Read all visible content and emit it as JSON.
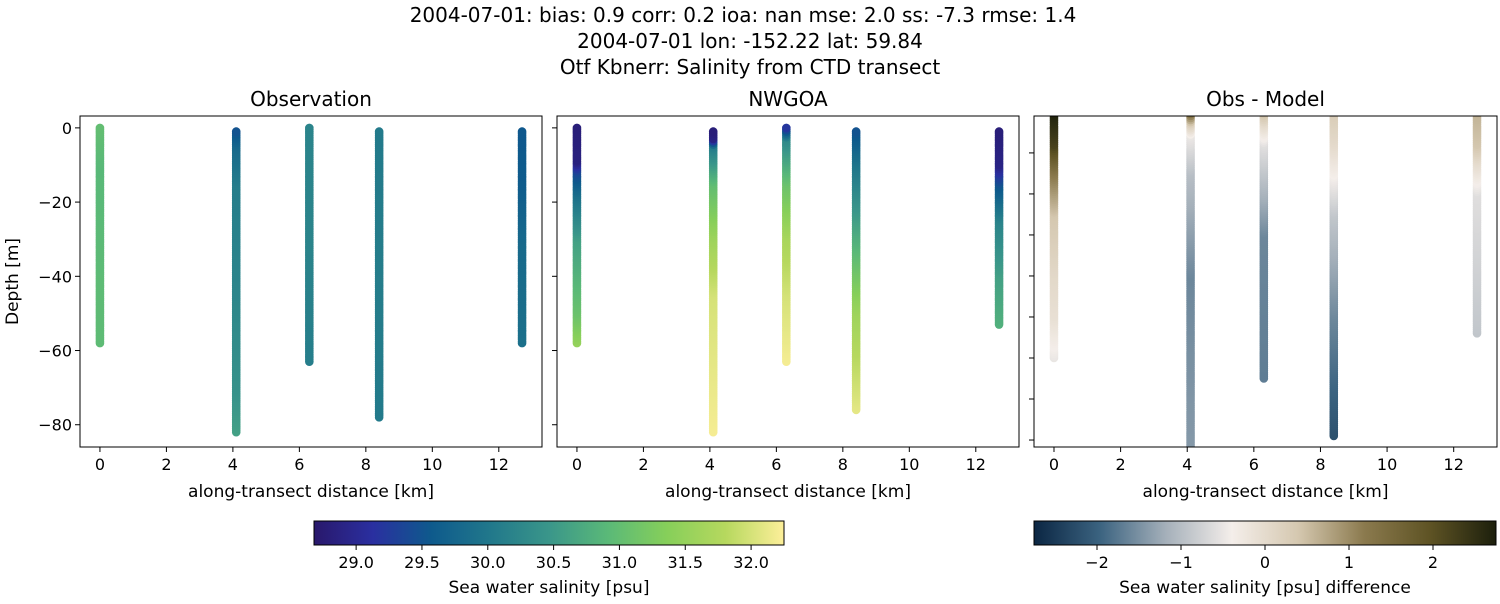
{
  "figure": {
    "suptitle_lines": [
      "2004-07-01: bias: 0.9  corr: 0.2  ioa: nan  mse: 2.0  ss: -7.3  rmse: 1.4",
      "2004-07-01 lon: -152.22 lat: 59.84",
      "Otf Kbnerr: Salinity from CTD transect"
    ]
  },
  "chart_data": [
    {
      "type": "scatter",
      "title": "Observation",
      "xlabel": "along-transect distance [km]",
      "ylabel": "Depth [m]",
      "xlim": [
        -0.6,
        13.3
      ],
      "ylim": [
        -86,
        3.2
      ],
      "xticks": [
        0,
        2,
        4,
        6,
        8,
        10,
        12
      ],
      "yticks": [
        0,
        -20,
        -40,
        -60,
        -80
      ],
      "ytick_labels_shown": true,
      "colormap": "salinity",
      "profiles": [
        {
          "x": 0.0,
          "points": [
            [
              0,
              31.0
            ],
            [
              -10,
              30.9
            ],
            [
              -40,
              30.95
            ],
            [
              -58,
              30.95
            ]
          ]
        },
        {
          "x": 4.1,
          "points": [
            [
              -1,
              29.5
            ],
            [
              -5,
              29.8
            ],
            [
              -15,
              30.1
            ],
            [
              -40,
              30.2
            ],
            [
              -70,
              30.4
            ],
            [
              -82,
              30.6
            ]
          ]
        },
        {
          "x": 6.3,
          "points": [
            [
              0,
              30.2
            ],
            [
              -30,
              30.2
            ],
            [
              -63,
              30.1
            ]
          ]
        },
        {
          "x": 8.4,
          "points": [
            [
              -1,
              30.05
            ],
            [
              -40,
              30.1
            ],
            [
              -78,
              30.05
            ]
          ]
        },
        {
          "x": 12.7,
          "points": [
            [
              -1,
              29.55
            ],
            [
              -15,
              29.6
            ],
            [
              -30,
              29.8
            ],
            [
              -58,
              29.9
            ]
          ]
        }
      ]
    },
    {
      "type": "scatter",
      "title": "NWGOA",
      "xlabel": "along-transect distance [km]",
      "xlim": [
        -0.6,
        13.3
      ],
      "ylim": [
        -86,
        3.2
      ],
      "xticks": [
        0,
        2,
        4,
        6,
        8,
        10,
        12
      ],
      "yticks": [
        0,
        -20,
        -40,
        -60,
        -80
      ],
      "ytick_labels_shown": false,
      "colormap": "salinity",
      "profiles": [
        {
          "x": 0.0,
          "points": [
            [
              0,
              28.8
            ],
            [
              -9,
              28.85
            ],
            [
              -12,
              29.4
            ],
            [
              -18,
              29.9
            ],
            [
              -30,
              30.6
            ],
            [
              -50,
              31.1
            ],
            [
              -58,
              31.5
            ]
          ]
        },
        {
          "x": 4.1,
          "points": [
            [
              -1,
              28.8
            ],
            [
              -3,
              28.9
            ],
            [
              -5,
              30.1
            ],
            [
              -15,
              31.0
            ],
            [
              -30,
              31.6
            ],
            [
              -45,
              32.0
            ],
            [
              -82,
              32.2
            ]
          ]
        },
        {
          "x": 6.3,
          "points": [
            [
              0,
              29.2
            ],
            [
              -3,
              30.3
            ],
            [
              -15,
              31.1
            ],
            [
              -30,
              31.7
            ],
            [
              -45,
              32.0
            ],
            [
              -63,
              32.2
            ]
          ]
        },
        {
          "x": 8.4,
          "points": [
            [
              -1,
              29.5
            ],
            [
              -10,
              30.0
            ],
            [
              -30,
              30.8
            ],
            [
              -50,
              31.6
            ],
            [
              -76,
              32.1
            ]
          ]
        },
        {
          "x": 12.7,
          "points": [
            [
              -1,
              28.8
            ],
            [
              -10,
              28.9
            ],
            [
              -15,
              29.5
            ],
            [
              -25,
              30.2
            ],
            [
              -40,
              30.6
            ],
            [
              -53,
              30.8
            ]
          ]
        }
      ]
    },
    {
      "type": "scatter",
      "title": "Obs - Model",
      "xlabel": "along-transect distance [km]",
      "xlim": [
        -0.6,
        13.3
      ],
      "ylim": [
        -81.7,
        -1
      ],
      "xticks": [
        0,
        2,
        4,
        6,
        8,
        10,
        12
      ],
      "yticks": [
        -10,
        -20,
        -30,
        -40,
        -50,
        -60,
        -70,
        -80
      ],
      "ytick_labels_shown": false,
      "colormap": "difference",
      "profiles": [
        {
          "x": 0.0,
          "points": [
            [
              0,
              2.7
            ],
            [
              -8,
              2.2
            ],
            [
              -15,
              1.2
            ],
            [
              -25,
              0.4
            ],
            [
              -40,
              0.05
            ],
            [
              -50,
              -0.1
            ],
            [
              -60,
              -0.5
            ]
          ]
        },
        {
          "x": 4.1,
          "points": [
            [
              0,
              1.5
            ],
            [
              -3,
              0.2
            ],
            [
              -6,
              -0.5
            ],
            [
              -15,
              -1.0
            ],
            [
              -40,
              -1.6
            ],
            [
              -70,
              -1.45
            ],
            [
              -88,
              -1.4
            ]
          ]
        },
        {
          "x": 6.3,
          "points": [
            [
              0,
              0.5
            ],
            [
              -3,
              0.0
            ],
            [
              -8,
              -0.6
            ],
            [
              -30,
              -1.6
            ],
            [
              -65,
              -1.7
            ]
          ]
        },
        {
          "x": 8.4,
          "points": [
            [
              0,
              0.3
            ],
            [
              -8,
              0.0
            ],
            [
              -25,
              -0.9
            ],
            [
              -50,
              -1.6
            ],
            [
              -79,
              -2.2
            ]
          ]
        },
        {
          "x": 12.7,
          "points": [
            [
              0,
              0.6
            ],
            [
              -8,
              0.4
            ],
            [
              -12,
              0.0
            ],
            [
              -20,
              -0.6
            ],
            [
              -54,
              -0.9
            ]
          ]
        }
      ]
    }
  ],
  "colorbars": [
    {
      "label": "Sea water salinity [psu]",
      "range": [
        28.68,
        32.25
      ],
      "ticks": [
        "29.0",
        "29.5",
        "30.0",
        "30.5",
        "31.0",
        "31.5",
        "32.0"
      ],
      "colors": [
        "#29186b",
        "#2a2fa0",
        "#0e5a8c",
        "#21788b",
        "#3a968a",
        "#5ab978",
        "#86cf5a",
        "#b6d85e",
        "#fdef9a"
      ]
    },
    {
      "label": "Sea water salinity [psu] difference",
      "range": [
        -2.75,
        2.75
      ],
      "ticks": [
        "−2",
        "−1",
        "0",
        "1",
        "2"
      ],
      "colors": [
        "#0b2643",
        "#3b6380",
        "#a5b0ba",
        "#f4eeea",
        "#d5c8b0",
        "#8b7a4e",
        "#5e5324",
        "#1c1f0c"
      ]
    }
  ]
}
